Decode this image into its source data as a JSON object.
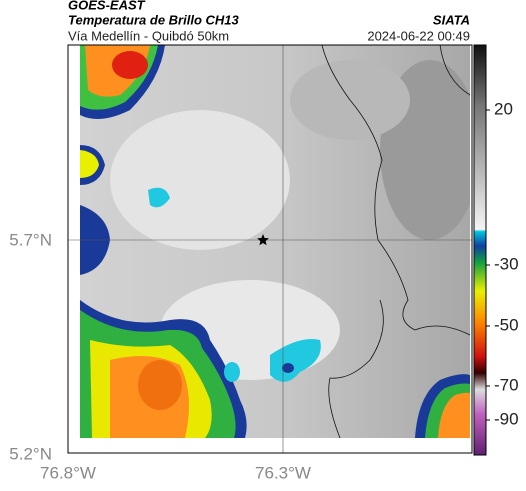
{
  "header": {
    "source": "GOES-EAST",
    "title": "Temperatura de Brillo CH13",
    "org": "SIATA",
    "route": "Vía Medellín - Quibdó 50km",
    "timestamp": "2024-06-22 00:49"
  },
  "axes": {
    "lat_ticks": [
      "5.7°N",
      "5.2°N"
    ],
    "lon_ticks": [
      "76.8°W",
      "76.3°W"
    ]
  },
  "colorbar": {
    "ticks": [
      "20",
      "-30",
      "-50",
      "-70",
      "-90"
    ]
  }
}
